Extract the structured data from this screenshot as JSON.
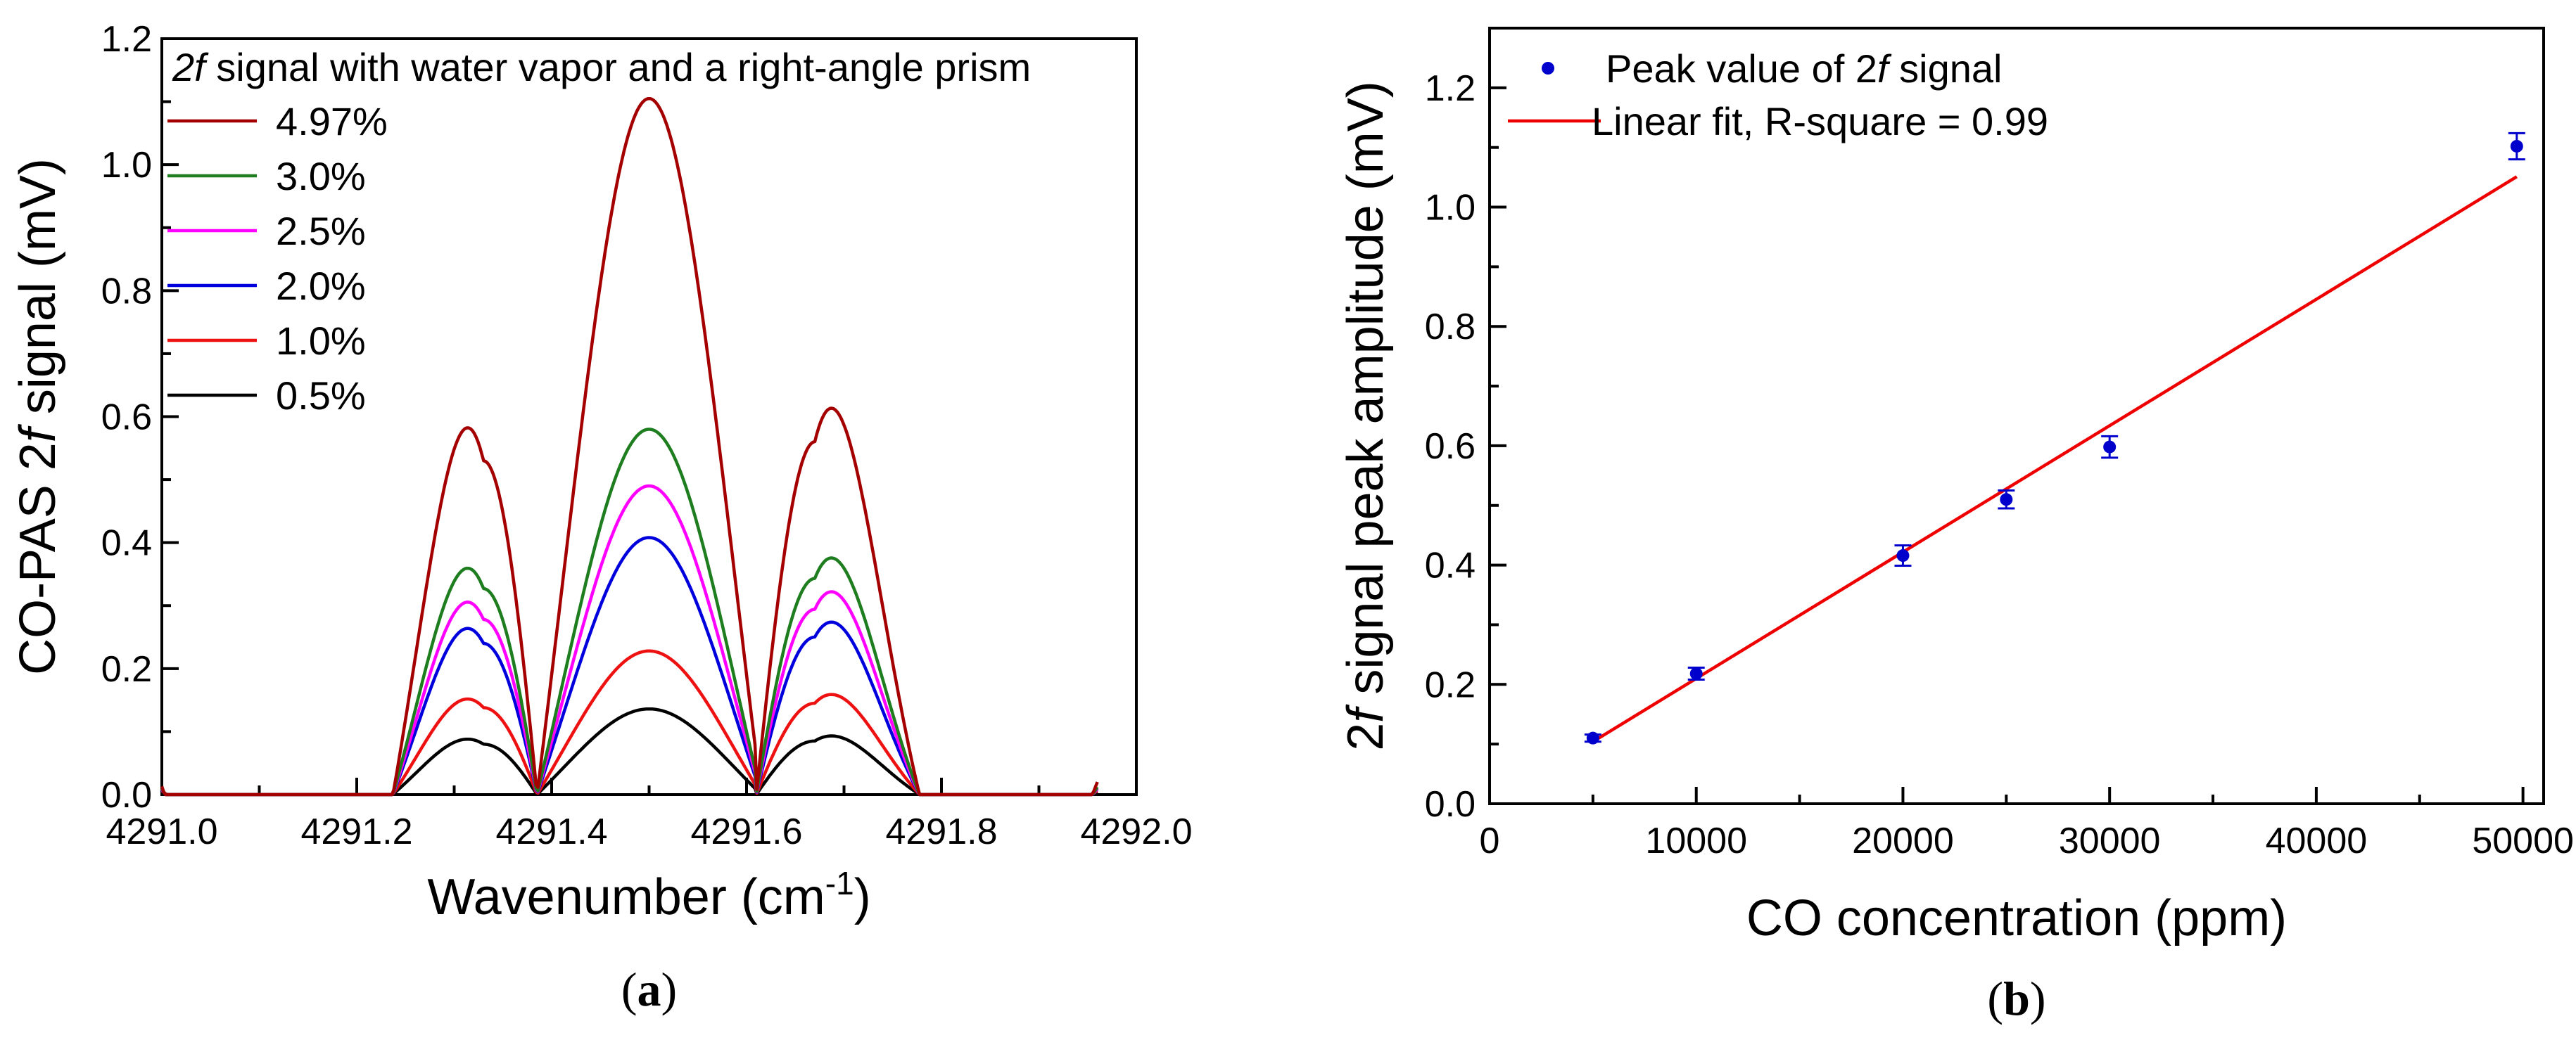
{
  "chart_data": [
    {
      "panel": "a",
      "type": "line",
      "caption": "(a)",
      "caption_letter": "a",
      "title": "2f signal with water vapor and a right-angle prism",
      "title_italic_part": "2f",
      "title_rest": " signal with water vapor and a right-angle prism",
      "xlabel": "Wavenumber (cm-1)",
      "xlabel_main": "Wavenumber (cm",
      "xlabel_sup": "-1",
      "xlabel_close": ")",
      "ylabel": "CO-PAS 2f signal (mV)",
      "ylabel_parts": [
        "CO-PAS 2",
        "f",
        " signal (mV)"
      ],
      "xlim": [
        4291.0,
        4292.0
      ],
      "ylim": [
        0.0,
        1.2
      ],
      "xticks": [
        "4291.0",
        "4291.2",
        "4291.4",
        "4291.6",
        "4291.8",
        "4292.0"
      ],
      "yticks": [
        "0.0",
        "0.2",
        "0.4",
        "0.6",
        "0.8",
        "1.0",
        "1.2"
      ],
      "legend_position": "top-left",
      "line_shape": {
        "x_start": 4291.0,
        "x_end": 4291.96,
        "zeros": [
          4291.385,
          4291.61
        ],
        "center_peak_x": 4291.5,
        "left_peak_x": 4291.33,
        "right_peak_x": 4291.67,
        "left_halfwidth": 0.12,
        "center_halfwidth": 0.155,
        "right_halfwidth": 0.12
      },
      "series": [
        {
          "name": "4.97%",
          "color": "#a50000",
          "center_peak": 1.105,
          "left_peak": 0.53,
          "right_peak": 0.56,
          "left_tail": 0.013,
          "right_tail": 0.02
        },
        {
          "name": "3.0%",
          "color": "#1e7d1e",
          "center_peak": 0.58,
          "left_peak": 0.327,
          "right_peak": 0.343,
          "left_tail": 0.01,
          "right_tail": 0.012
        },
        {
          "name": "2.5%",
          "color": "#ff00ff",
          "center_peak": 0.49,
          "left_peak": 0.278,
          "right_peak": 0.294,
          "left_tail": 0.009,
          "right_tail": 0.01
        },
        {
          "name": "2.0%",
          "color": "#0000dd",
          "center_peak": 0.408,
          "left_peak": 0.24,
          "right_peak": 0.25,
          "left_tail": 0.008,
          "right_tail": 0.009
        },
        {
          "name": "1.0%",
          "color": "#ee1111",
          "center_peak": 0.228,
          "left_peak": 0.138,
          "right_peak": 0.145,
          "left_tail": 0.006,
          "right_tail": 0.006
        },
        {
          "name": "0.5%",
          "color": "#000000",
          "center_peak": 0.136,
          "left_peak": 0.08,
          "right_peak": 0.085,
          "left_tail": 0.004,
          "right_tail": 0.004
        }
      ]
    },
    {
      "panel": "b",
      "type": "scatter",
      "caption": "(b)",
      "caption_letter": "b",
      "xlabel": "CO concentration (ppm)",
      "ylabel": "2f signal peak amplitude (mV)",
      "ylabel_parts": [
        "2",
        "f",
        " signal peak amplitude (mV)"
      ],
      "xlim": [
        0,
        51000
      ],
      "ylim": [
        0.0,
        1.3
      ],
      "xticks": [
        "0",
        "10000",
        "20000",
        "30000",
        "40000",
        "50000"
      ],
      "yticks": [
        "0.0",
        "0.2",
        "0.4",
        "0.6",
        "0.8",
        "1.0",
        "1.2"
      ],
      "legend_position": "top-left",
      "legend": {
        "points_label": "Peak value of 2f signal",
        "points_label_main": "Peak value of 2",
        "points_label_ital": "f",
        "points_label_tail": " signal",
        "fit_label": "Linear fit, R-square = 0.99"
      },
      "points_color": "#0000cc",
      "fit_color": "#ee0000",
      "points": [
        {
          "x": 5000,
          "y": 0.11,
          "err": 0.006
        },
        {
          "x": 10000,
          "y": 0.218,
          "err": 0.01
        },
        {
          "x": 20000,
          "y": 0.416,
          "err": 0.017
        },
        {
          "x": 25000,
          "y": 0.51,
          "err": 0.015
        },
        {
          "x": 30000,
          "y": 0.598,
          "err": 0.018
        },
        {
          "x": 49700,
          "y": 1.102,
          "err": 0.022
        }
      ],
      "fit": {
        "x": [
          5000,
          49700
        ],
        "y": [
          0.104,
          1.051
        ]
      }
    }
  ]
}
